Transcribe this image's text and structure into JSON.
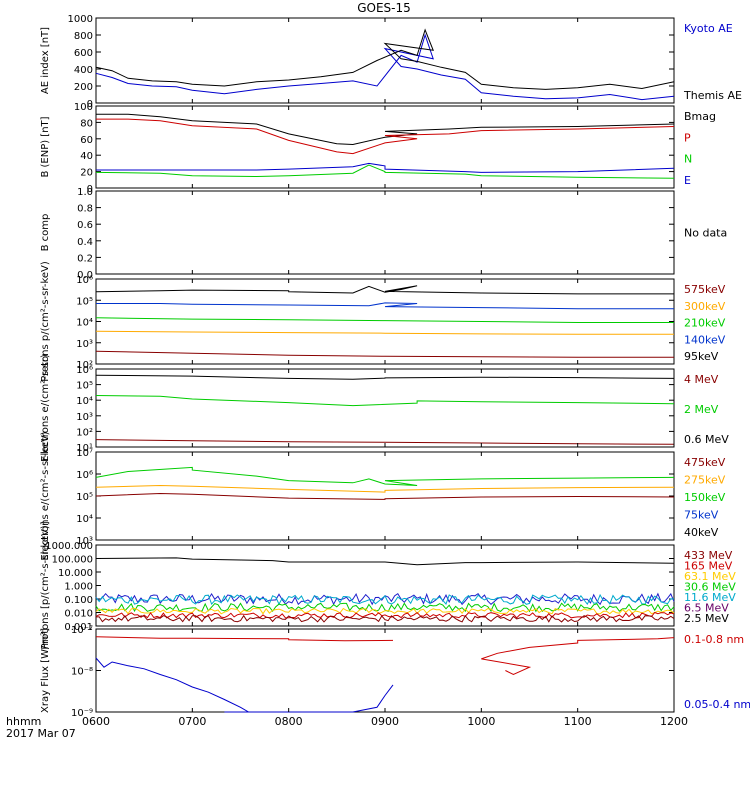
{
  "title": "GOES-15",
  "time_label": "hhmm",
  "date_label": "2017 Mar 07",
  "x_ticks": [
    "0600",
    "0700",
    "0800",
    "0900",
    "1000",
    "1100",
    "1200"
  ],
  "chart_data": [
    {
      "type": "line",
      "ylabel": "AE index [nT]",
      "ylim": [
        0,
        1000
      ],
      "y_ticks": [
        "0",
        "200",
        "400",
        "600",
        "800",
        "1000"
      ],
      "labels": [
        {
          "text": "Kyoto AE",
          "color": "#0000cc"
        },
        {
          "text": "Themis AE",
          "color": "#000000"
        }
      ],
      "series": [
        {
          "name": "Kyoto AE",
          "color": "#0000cc",
          "x": [
            600,
            610,
            620,
            635,
            650,
            700,
            720,
            740,
            800,
            820,
            840,
            855,
            870,
            880,
            885,
            890,
            900,
            910,
            920,
            935,
            950,
            1000,
            1020,
            1040,
            1100,
            1120,
            1140,
            1200
          ],
          "y": [
            350,
            300,
            230,
            200,
            190,
            150,
            110,
            160,
            200,
            230,
            260,
            200,
            560,
            480,
            800,
            520,
            640,
            430,
            400,
            330,
            280,
            120,
            80,
            50,
            60,
            100,
            40,
            80
          ]
        },
        {
          "name": "Themis AE",
          "color": "#000000",
          "x": [
            600,
            610,
            620,
            635,
            650,
            700,
            720,
            740,
            800,
            820,
            840,
            855,
            870,
            880,
            885,
            890,
            900,
            910,
            920,
            935,
            950,
            1000,
            1020,
            1040,
            1100,
            1120,
            1140,
            1200
          ],
          "y": [
            420,
            380,
            290,
            260,
            250,
            220,
            200,
            250,
            270,
            310,
            360,
            500,
            620,
            560,
            860,
            620,
            700,
            520,
            490,
            420,
            360,
            220,
            180,
            160,
            180,
            220,
            170,
            250
          ]
        }
      ]
    },
    {
      "type": "line",
      "ylabel": "B (ENP) [nT]",
      "ylim": [
        0,
        100
      ],
      "y_ticks": [
        "0",
        "20",
        "40",
        "60",
        "80",
        "100"
      ],
      "labels": [
        {
          "text": "Bmag",
          "color": "#000000"
        },
        {
          "text": "P",
          "color": "#cc0000"
        },
        {
          "text": "N",
          "color": "#00cc00"
        },
        {
          "text": "E",
          "color": "#0000cc"
        }
      ],
      "series": [
        {
          "name": "Bmag",
          "color": "#000000",
          "x": [
            600,
            620,
            640,
            700,
            740,
            800,
            830,
            840,
            860,
            880,
            900,
            940,
            1000,
            1100,
            1200
          ],
          "y": [
            90,
            90,
            87,
            82,
            78,
            66,
            54,
            53,
            62,
            66,
            69,
            72,
            74,
            75,
            78
          ]
        },
        {
          "name": "P",
          "color": "#cc0000",
          "x": [
            600,
            620,
            640,
            700,
            740,
            800,
            830,
            840,
            860,
            880,
            900,
            940,
            1000,
            1100,
            1200
          ],
          "y": [
            84,
            84,
            82,
            76,
            72,
            58,
            44,
            42,
            55,
            60,
            64,
            66,
            70,
            72,
            75
          ]
        },
        {
          "name": "N",
          "color": "#00cc00",
          "x": [
            600,
            640,
            700,
            740,
            800,
            840,
            850,
            860,
            900,
            950,
            1000,
            1100,
            1200
          ],
          "y": [
            19,
            18,
            15,
            14,
            15,
            18,
            28,
            20,
            19,
            17,
            15,
            13,
            12
          ]
        },
        {
          "name": "E",
          "color": "#0000cc",
          "x": [
            600,
            640,
            700,
            740,
            800,
            840,
            850,
            860,
            900,
            950,
            1000,
            1100,
            1200
          ],
          "y": [
            22,
            22,
            22,
            22,
            23,
            26,
            30,
            27,
            23,
            20,
            19,
            20,
            24
          ]
        }
      ]
    },
    {
      "type": "line",
      "ylabel": "B comp",
      "ylim": [
        0,
        1
      ],
      "y_ticks": [
        "0.0",
        "0.2",
        "0.4",
        "0.6",
        "0.8",
        "1.0"
      ],
      "labels": [
        {
          "text": "No data",
          "color": "#000000"
        }
      ],
      "series": []
    },
    {
      "type": "line",
      "ylabel": "Protons p/(cm²-s-sr-keV)",
      "scale": "log",
      "ylim": [
        100,
        1000000
      ],
      "y_ticks": [
        "10²",
        "10³",
        "10⁴",
        "10⁵",
        "10⁶"
      ],
      "labels": [
        {
          "text": "575keV",
          "color": "#880000"
        },
        {
          "text": "300keV",
          "color": "#ffaa00"
        },
        {
          "text": "210keV",
          "color": "#00cc00"
        },
        {
          "text": "140keV",
          "color": "#0033cc"
        },
        {
          "text": "95keV",
          "color": "#000000"
        }
      ],
      "series": [
        {
          "name": "95keV",
          "color": "#000000",
          "x": [
            600,
            640,
            700,
            760,
            800,
            840,
            850,
            860,
            870,
            880,
            900,
            1000,
            1100,
            1200
          ],
          "y": [
            250000,
            280000,
            300000,
            280000,
            250000,
            220000,
            450000,
            240000,
            320000,
            480000,
            260000,
            220000,
            200000,
            200000
          ]
        },
        {
          "name": "140keV",
          "color": "#0033cc",
          "x": [
            600,
            640,
            700,
            800,
            850,
            860,
            880,
            900,
            1000,
            1100,
            1200
          ],
          "y": [
            70000,
            70000,
            65000,
            60000,
            55000,
            75000,
            70000,
            50000,
            45000,
            40000,
            40000
          ]
        },
        {
          "name": "210keV",
          "color": "#00cc00",
          "x": [
            600,
            700,
            800,
            900,
            1000,
            1100,
            1200
          ],
          "y": [
            15000,
            13000,
            12000,
            11000,
            10000,
            9000,
            9000
          ]
        },
        {
          "name": "300keV",
          "color": "#ffaa00",
          "x": [
            600,
            700,
            800,
            900,
            1000,
            1100,
            1200
          ],
          "y": [
            3500,
            3200,
            3000,
            2800,
            2600,
            2500,
            2500
          ]
        },
        {
          "name": "575keV",
          "color": "#880000",
          "x": [
            600,
            700,
            800,
            900,
            1000,
            1100,
            1200
          ],
          "y": [
            400,
            320,
            260,
            230,
            220,
            210,
            210
          ]
        }
      ]
    },
    {
      "type": "line",
      "ylabel": "Electrons e/(cm²-s-sr)",
      "scale": "log",
      "ylim": [
        10,
        1000000
      ],
      "y_ticks": [
        "10¹",
        "10²",
        "10³",
        "10⁴",
        "10⁵",
        "10⁶"
      ],
      "labels": [
        {
          "text": "4 MeV",
          "color": "#880000"
        },
        {
          "text": "2 MeV",
          "color": "#00cc00"
        },
        {
          "text": "0.6 MeV",
          "color": "#000000"
        }
      ],
      "series": [
        {
          "name": "0.6 MeV",
          "color": "#000000",
          "x": [
            600,
            700,
            800,
            840,
            860,
            900,
            1000,
            1100,
            1200
          ],
          "y": [
            400000,
            350000,
            250000,
            220000,
            260000,
            270000,
            300000,
            280000,
            250000
          ]
        },
        {
          "name": "2 MeV",
          "color": "#00cc00",
          "x": [
            600,
            640,
            700,
            800,
            840,
            880,
            920,
            1000,
            1100,
            1200
          ],
          "y": [
            20000,
            18000,
            12000,
            7000,
            4500,
            6500,
            9000,
            8000,
            7000,
            6000
          ]
        },
        {
          "name": "4 MeV",
          "color": "#880000",
          "x": [
            600,
            700,
            800,
            900,
            1000,
            1100,
            1200
          ],
          "y": [
            30,
            25,
            22,
            20,
            18,
            16,
            15
          ]
        }
      ]
    },
    {
      "type": "line",
      "ylabel": "Electrons e/(cm²-s-sr-keV)",
      "scale": "log",
      "ylim": [
        1000,
        10000000
      ],
      "y_ticks": [
        "10³",
        "10⁴",
        "10⁵",
        "10⁶",
        "10⁷"
      ],
      "labels": [
        {
          "text": "475keV",
          "color": "#880000"
        },
        {
          "text": "275keV",
          "color": "#ffaa00"
        },
        {
          "text": "150keV",
          "color": "#00cc00"
        },
        {
          "text": "75keV",
          "color": "#0033cc"
        },
        {
          "text": "40keV",
          "color": "#000000"
        }
      ],
      "series": [
        {
          "name": "150keV",
          "color": "#00cc00",
          "x": [
            600,
            620,
            660,
            700,
            740,
            800,
            840,
            850,
            860,
            880,
            900,
            1000,
            1100,
            1200
          ],
          "y": [
            700000,
            1300000,
            2000000,
            1500000,
            800000,
            500000,
            400000,
            600000,
            350000,
            300000,
            500000,
            600000,
            650000,
            700000
          ]
        },
        {
          "name": "275keV",
          "color": "#ffaa00",
          "x": [
            600,
            640,
            700,
            800,
            860,
            900,
            1000,
            1100,
            1200
          ],
          "y": [
            250000,
            300000,
            280000,
            200000,
            150000,
            180000,
            220000,
            240000,
            250000
          ]
        },
        {
          "name": "475keV",
          "color": "#880000",
          "x": [
            600,
            640,
            700,
            800,
            860,
            900,
            1000,
            1100,
            1200
          ],
          "y": [
            100000,
            130000,
            120000,
            80000,
            70000,
            75000,
            90000,
            95000,
            90000
          ]
        }
      ]
    },
    {
      "type": "line",
      "ylabel": "Protons [p/(cm²-s-sr-keV)]",
      "scale": "log",
      "ylim": [
        0.001,
        1000
      ],
      "y_ticks": [
        "0.001",
        "0.010",
        "0.100",
        "1.000",
        "10.000",
        "100.000",
        "1000.000"
      ],
      "labels": [
        {
          "text": "433 MeV",
          "color": "#880000"
        },
        {
          "text": "165 MeV",
          "color": "#cc0000"
        },
        {
          "text": "63.1 MeV",
          "color": "#ffcc00"
        },
        {
          "text": "30.6 MeV",
          "color": "#00cc00"
        },
        {
          "text": "11.6 MeV",
          "color": "#00aacc"
        },
        {
          "text": "6.5 MeV",
          "color": "#660066"
        },
        {
          "text": "2.5 MeV",
          "color": "#000000"
        }
      ],
      "series": [
        {
          "name": "2.5 MeV",
          "color": "#000000",
          "x": [
            600,
            650,
            700,
            750,
            800,
            850,
            900,
            920,
            950,
            1000,
            1100,
            1200
          ],
          "y": [
            100,
            110,
            90,
            70,
            55,
            55,
            55,
            35,
            50,
            50,
            55,
            45
          ]
        }
      ],
      "noise_bands": [
        {
          "name": "6.5 MeV",
          "color": "#2020cc",
          "lo": 0.04,
          "hi": 0.25
        },
        {
          "name": "11.6 MeV",
          "color": "#00aacc",
          "lo": 0.04,
          "hi": 0.2
        },
        {
          "name": "30.6 MeV",
          "color": "#00cc00",
          "lo": 0.012,
          "hi": 0.05
        },
        {
          "name": "63.1 MeV",
          "color": "#ffcc00",
          "lo": 0.008,
          "hi": 0.02
        },
        {
          "name": "165 MeV",
          "color": "#cc0000",
          "lo": 0.004,
          "hi": 0.01
        },
        {
          "name": "433 MeV",
          "color": "#880000",
          "lo": 0.002,
          "hi": 0.006
        }
      ]
    },
    {
      "type": "line",
      "ylabel": "Xray Flux [W/m²]",
      "scale": "log",
      "ylim": [
        1e-09,
        1e-07
      ],
      "y_ticks": [
        "10⁻⁹",
        "10⁻⁸",
        "10⁻⁷"
      ],
      "labels": [
        {
          "text": "0.1-0.8 nm",
          "color": "#cc0000"
        },
        {
          "text": "0.05-0.4 nm",
          "color": "#0000cc"
        }
      ],
      "series": [
        {
          "name": "0.1-0.8 nm",
          "color": "#cc0000",
          "x": [
            600,
            640,
            700,
            760,
            800,
            835,
            865
          ],
          "y": [
            6.5e-08,
            6e-08,
            6e-08,
            5.8e-08,
            5.5e-08,
            5.2e-08,
            5.3e-08
          ]
        },
        {
          "name": "0.1-0.8 nm",
          "color": "#cc0000",
          "x": [
            975,
            980,
            990,
            1000,
            1010,
            1030,
            1060,
            1100,
            1150,
            1200
          ],
          "y": [
            1e-08,
            8e-09,
            1.2e-08,
            1.9e-08,
            2.6e-08,
            3.6e-08,
            4.6e-08,
            5.3e-08,
            5.8e-08,
            6.2e-08
          ]
        },
        {
          "name": "0.05-0.4 nm",
          "color": "#0000cc",
          "x": [
            600,
            605,
            610,
            620,
            630,
            640,
            650,
            660,
            670,
            680,
            690,
            695,
            720,
            740,
            760,
            800,
            840,
            855,
            860,
            865
          ],
          "y": [
            2e-08,
            1.2e-08,
            1.6e-08,
            1.3e-08,
            1.1e-08,
            8e-09,
            6e-09,
            4e-09,
            3e-09,
            2e-09,
            1.3e-09,
            1e-09,
            1e-09,
            1e-09,
            1e-09,
            1e-09,
            1e-09,
            1.3e-09,
            2.5e-09,
            4.5e-09
          ]
        }
      ]
    }
  ]
}
